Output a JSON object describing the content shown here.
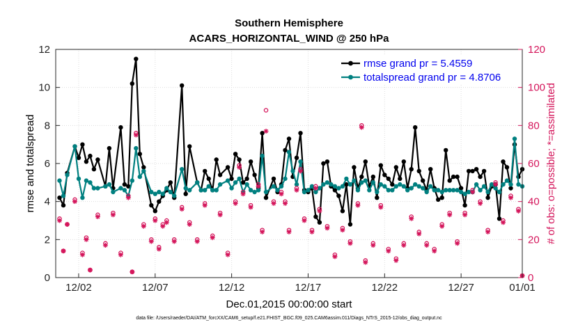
{
  "chart_data": {
    "type": "line",
    "title": [
      "Southern Hemisphere",
      "ACARS_HORIZONTAL_WIND @ 250 hPa"
    ],
    "xlabel": "Dec.01,2015 00:00:00 start",
    "ylabel": "rmse and totalspread",
    "ylabel_right": "# of obs: o=possible; *=assimilated",
    "ylim": [
      0,
      12
    ],
    "ylim_right": [
      0,
      120
    ],
    "xlim": [
      0.5,
      31.0
    ],
    "yticks": [
      "0",
      "2",
      "4",
      "6",
      "8",
      "10",
      "12"
    ],
    "yticks_right": [
      "0",
      "20",
      "40",
      "60",
      "80",
      "100",
      "120"
    ],
    "xticks": [
      {
        "x": 2,
        "label": "12/02"
      },
      {
        "x": 7,
        "label": "12/07"
      },
      {
        "x": 12,
        "label": "12/12"
      },
      {
        "x": 17,
        "label": "12/17"
      },
      {
        "x": 22,
        "label": "12/22"
      },
      {
        "x": 27,
        "label": "12/27"
      },
      {
        "x": 32,
        "label": "01/01"
      }
    ],
    "colors": {
      "rmse": "#000000",
      "spread": "#008080",
      "obs": "#d4145a",
      "legend_text": "#0000ee"
    },
    "legend": [
      {
        "key": "rmse",
        "label": "rmse grand pr = 5.4559"
      },
      {
        "key": "spread",
        "label": "totalspread grand pr = 4.8706"
      }
    ],
    "series": [
      {
        "name": "rmse",
        "x": [
          0.75,
          1.0,
          1.25,
          1.75,
          2.0,
          2.25,
          2.5,
          2.75,
          3.0,
          3.25,
          3.75,
          4.0,
          4.25,
          4.75,
          5.0,
          5.25,
          5.5,
          5.75,
          6.0,
          6.25,
          6.75,
          7.0,
          7.25,
          7.5,
          7.75,
          8.0,
          8.25,
          8.75,
          9.0,
          9.25,
          9.75,
          10.0,
          10.25,
          10.5,
          10.75,
          11.0,
          11.25,
          11.75,
          12.0,
          12.25,
          12.5,
          12.75,
          13.0,
          13.25,
          13.5,
          13.75,
          14.0,
          14.25,
          14.75,
          15.0,
          15.25,
          15.5,
          15.75,
          16.0,
          16.25,
          16.5,
          16.75,
          17.0,
          17.25,
          17.5,
          17.75,
          18.0,
          18.25,
          18.5,
          18.75,
          19.0,
          19.25,
          19.5,
          19.75,
          20.0,
          20.25,
          20.5,
          20.75,
          21.0,
          21.25,
          21.5,
          21.75,
          22.0,
          22.25,
          22.5,
          22.75,
          23.0,
          23.25,
          23.5,
          23.75,
          24.0,
          24.25,
          24.5,
          24.75,
          25.0,
          25.25,
          25.5,
          25.75,
          26.0,
          26.25,
          26.5,
          26.75,
          27.0,
          27.25,
          27.5,
          27.75,
          28.0,
          28.25,
          28.5,
          28.75,
          29.0,
          29.25,
          29.5,
          29.75,
          30.0,
          30.25,
          30.5,
          30.75,
          31.0
        ],
        "y": [
          4.2,
          3.8,
          5.5,
          6.9,
          6.3,
          7.0,
          6.1,
          6.4,
          5.7,
          6.2,
          4.8,
          6.8,
          4.7,
          7.9,
          4.9,
          4.8,
          10.2,
          11.5,
          6.5,
          5.8,
          3.8,
          3.5,
          4.0,
          4.3,
          4.6,
          5.0,
          4.2,
          10.1,
          4.4,
          6.9,
          5.0,
          4.6,
          5.6,
          5.2,
          4.6,
          6.2,
          5.4,
          5.8,
          5.2,
          6.5,
          6.2,
          5.0,
          5.2,
          6.1,
          5.4,
          4.7,
          7.6,
          4.2,
          5.2,
          4.5,
          4.9,
          6.7,
          7.3,
          5.3,
          6.3,
          7.6,
          4.6,
          4.5,
          4.7,
          3.2,
          2.9,
          6.0,
          6.1,
          4.8,
          4.6,
          4.3,
          3.5,
          4.9,
          2.8,
          5.8,
          4.7,
          5.3,
          6.1,
          4.8,
          5.3,
          4.2,
          5.9,
          5.4,
          5.2,
          4.9,
          5.8,
          5.2,
          6.1,
          4.7,
          5.7,
          7.9,
          5.6,
          5.1,
          4.6,
          5.7,
          4.7,
          4.1,
          4.2,
          6.7,
          5.1,
          5.3,
          5.3,
          4.7,
          3.8,
          5.6,
          5.6,
          5.7,
          5.3,
          5.6,
          4.2,
          4.8,
          4.9,
          3.1,
          6.1,
          5.8,
          4.7,
          7.0,
          5.3,
          5.7
        ]
      },
      {
        "name": "totalspread",
        "x": [
          0.75,
          1.0,
          1.25,
          1.75,
          2.0,
          2.25,
          2.5,
          2.75,
          3.0,
          3.25,
          3.75,
          4.0,
          4.25,
          4.75,
          5.0,
          5.25,
          5.5,
          5.75,
          6.0,
          6.25,
          6.75,
          7.0,
          7.25,
          7.5,
          7.75,
          8.0,
          8.25,
          8.75,
          9.0,
          9.25,
          9.75,
          10.0,
          10.25,
          10.5,
          10.75,
          11.0,
          11.25,
          11.75,
          12.0,
          12.25,
          12.5,
          12.75,
          13.0,
          13.25,
          13.5,
          13.75,
          14.0,
          14.25,
          14.75,
          15.0,
          15.25,
          15.5,
          15.75,
          16.0,
          16.25,
          16.5,
          16.75,
          17.0,
          17.25,
          17.5,
          17.75,
          18.0,
          18.25,
          18.5,
          18.75,
          19.0,
          19.25,
          19.5,
          19.75,
          20.0,
          20.25,
          20.5,
          20.75,
          21.0,
          21.25,
          21.5,
          21.75,
          22.0,
          22.25,
          22.5,
          22.75,
          23.0,
          23.25,
          23.5,
          23.75,
          24.0,
          24.25,
          24.5,
          24.75,
          25.0,
          25.25,
          25.5,
          25.75,
          26.0,
          26.25,
          26.5,
          26.75,
          27.0,
          27.25,
          27.5,
          27.75,
          28.0,
          28.25,
          28.5,
          28.75,
          29.0,
          29.25,
          29.5,
          29.75,
          30.0,
          30.25,
          30.5,
          30.75,
          31.0
        ],
        "y": [
          5.1,
          4.3,
          5.4,
          6.9,
          5.2,
          4.2,
          5.1,
          5.0,
          4.7,
          4.7,
          4.8,
          4.9,
          4.5,
          4.7,
          4.6,
          4.3,
          5.1,
          6.8,
          5.3,
          5.6,
          4.5,
          4.4,
          4.5,
          4.4,
          4.7,
          4.5,
          4.3,
          5.7,
          4.7,
          4.6,
          5.0,
          4.6,
          4.6,
          4.8,
          4.6,
          4.6,
          4.9,
          5.1,
          4.7,
          5.0,
          5.2,
          4.5,
          4.9,
          4.6,
          4.5,
          4.6,
          6.4,
          4.5,
          4.8,
          4.6,
          4.8,
          5.2,
          6.6,
          5.6,
          4.9,
          6.1,
          4.5,
          4.6,
          4.8,
          4.5,
          4.7,
          4.9,
          5.0,
          4.9,
          4.8,
          4.7,
          4.8,
          5.2,
          4.9,
          5.1,
          4.6,
          5.0,
          5.1,
          4.6,
          5.0,
          4.5,
          4.9,
          4.8,
          4.6,
          4.6,
          4.8,
          4.9,
          4.8,
          4.6,
          4.7,
          4.9,
          4.8,
          4.7,
          4.5,
          4.8,
          4.6,
          4.6,
          4.5,
          4.6,
          4.6,
          4.6,
          4.6,
          4.5,
          4.4,
          4.5,
          4.5,
          4.9,
          4.6,
          4.8,
          4.5,
          4.9,
          4.7,
          4.5,
          4.9,
          5.1,
          4.9,
          7.3,
          4.9,
          4.8
        ]
      }
    ],
    "obs_possible": {
      "x": [
        0.75,
        1.0,
        1.25,
        1.75,
        2.25,
        2.5,
        2.75,
        3.25,
        3.75,
        4.25,
        4.75,
        5.25,
        5.5,
        5.75,
        6.25,
        6.75,
        7.0,
        7.25,
        7.5,
        7.75,
        8.25,
        8.75,
        9.25,
        9.75,
        10.25,
        10.75,
        11.25,
        11.75,
        12.25,
        12.5,
        12.75,
        13.25,
        13.75,
        14.0,
        14.25,
        14.75,
        15.25,
        15.5,
        15.75,
        16.25,
        16.5,
        16.75,
        17.25,
        17.5,
        17.75,
        18.25,
        18.75,
        19.25,
        19.75,
        20.25,
        20.5,
        20.75,
        21.25,
        21.75,
        22.25,
        22.75,
        23.25,
        23.75,
        24.25,
        24.75,
        25.25,
        25.75,
        26.25,
        26.75,
        27.25,
        27.75,
        28.25,
        28.75,
        29.25,
        29.75,
        30.25,
        30.75,
        31.0
      ],
      "y": [
        31,
        14,
        28,
        41,
        13,
        21,
        4,
        33,
        18,
        34,
        13,
        43,
        3,
        76,
        28,
        20,
        31,
        16,
        28,
        30,
        20,
        37,
        29,
        20,
        39,
        22,
        34,
        13,
        40,
        59,
        45,
        38,
        49,
        25,
        88,
        40,
        45,
        40,
        25,
        47,
        57,
        31,
        25,
        48,
        36,
        27,
        12,
        26,
        19,
        39,
        80,
        9,
        18,
        38,
        15,
        10,
        18,
        32,
        24,
        18,
        15,
        28,
        34,
        19,
        34,
        46,
        40,
        25,
        50,
        30,
        43,
        36,
        1
      ]
    },
    "obs_assimilated": {
      "x": [
        0.75,
        1.0,
        1.25,
        1.75,
        2.25,
        2.5,
        2.75,
        3.25,
        3.75,
        4.25,
        4.75,
        5.25,
        5.5,
        5.75,
        6.25,
        6.75,
        7.0,
        7.25,
        7.5,
        7.75,
        8.25,
        8.75,
        9.25,
        9.75,
        10.25,
        10.75,
        11.25,
        11.75,
        12.25,
        12.5,
        12.75,
        13.25,
        13.75,
        14.0,
        14.25,
        14.75,
        15.25,
        15.5,
        15.75,
        16.25,
        16.5,
        16.75,
        17.25,
        17.5,
        17.75,
        18.25,
        18.75,
        19.25,
        19.75,
        20.25,
        20.5,
        20.75,
        21.25,
        21.75,
        22.25,
        22.75,
        23.25,
        23.75,
        24.25,
        24.75,
        25.25,
        25.75,
        26.25,
        26.75,
        27.25,
        27.75,
        28.25,
        28.75,
        29.25,
        29.75,
        30.25,
        30.75,
        31.0
      ],
      "y": [
        30,
        14,
        28,
        40,
        12,
        20,
        4,
        32,
        17,
        33,
        12,
        42,
        3,
        75,
        27,
        19,
        30,
        15,
        27,
        29,
        19,
        36,
        28,
        19,
        38,
        21,
        33,
        12,
        39,
        58,
        44,
        37,
        48,
        24,
        77,
        39,
        44,
        39,
        24,
        46,
        56,
        30,
        24,
        47,
        35,
        26,
        11,
        25,
        18,
        38,
        79,
        8,
        17,
        37,
        14,
        9,
        17,
        31,
        23,
        17,
        14,
        27,
        33,
        18,
        33,
        45,
        39,
        24,
        49,
        29,
        42,
        35,
        1
      ]
    },
    "footer": "data file: /Users/raeder/DAI/ATM_forcXX/CAM6_setup/f.e21.FHIST_BGC.f09_025.CAM6assim.011/Diags_NTrS_2015-12/obs_diag_output.nc"
  }
}
